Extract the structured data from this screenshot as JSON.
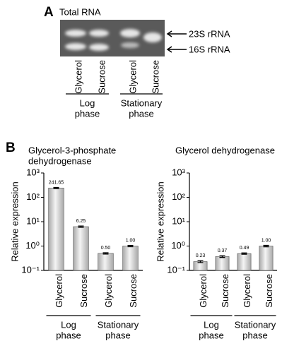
{
  "panel_a": {
    "letter": "A",
    "title": "Total RNA",
    "band_labels": [
      "23S rRNA",
      "16S rRNA"
    ],
    "lanes": [
      "Glycerol",
      "Sucrose",
      "Glycerol",
      "Sucrose"
    ],
    "groups": [
      [
        "Log",
        "phase"
      ],
      [
        "Stationary",
        "phase"
      ]
    ]
  },
  "panel_b_letter": "B",
  "chart_data": [
    {
      "type": "bar",
      "title": [
        "Glycerol-3-phosphate",
        "dehydrogenase"
      ],
      "y_label": "Relative expression",
      "log_scale": true,
      "ylim": [
        0.1,
        1000
      ],
      "yticks": [
        {
          "value": 1000,
          "label": "10³"
        },
        {
          "value": 100,
          "label": "10²"
        },
        {
          "value": 10,
          "label": "10¹"
        },
        {
          "value": 1,
          "label": "10⁰"
        },
        {
          "value": 0.1,
          "label": "10⁻¹"
        }
      ],
      "categories": [
        "Glycerol",
        "Sucrose",
        "Glycerol",
        "Sucrose"
      ],
      "groups": [
        [
          "Log",
          "phase"
        ],
        [
          "Stationary",
          "phase"
        ]
      ],
      "values": [
        241.65,
        6.25,
        0.5,
        1.0
      ],
      "value_labels": [
        "241.65",
        "6.25",
        "0.50",
        "1.00"
      ],
      "errors": [
        12,
        0.4,
        0.03,
        0.06
      ],
      "color": "#a8a8a8"
    },
    {
      "type": "bar",
      "title": [
        "Glycerol dehydrogenase"
      ],
      "y_label": "Relative expression",
      "log_scale": true,
      "ylim": [
        0.1,
        1000
      ],
      "yticks": [
        {
          "value": 1000,
          "label": "10³"
        },
        {
          "value": 100,
          "label": "10²"
        },
        {
          "value": 10,
          "label": "10¹"
        },
        {
          "value": 1,
          "label": "10⁰"
        },
        {
          "value": 0.1,
          "label": "10⁻¹"
        }
      ],
      "categories": [
        "Glycerol",
        "Sucrose",
        "Glycerol",
        "Sucrose"
      ],
      "groups": [
        [
          "Log",
          "phase"
        ],
        [
          "Stationary",
          "phase"
        ]
      ],
      "values": [
        0.23,
        0.37,
        0.49,
        1.0
      ],
      "value_labels": [
        "0.23",
        "0.37",
        "0.49",
        "1.00"
      ],
      "errors": [
        0.02,
        0.03,
        0.03,
        0.07
      ],
      "color": "#a8a8a8"
    }
  ]
}
